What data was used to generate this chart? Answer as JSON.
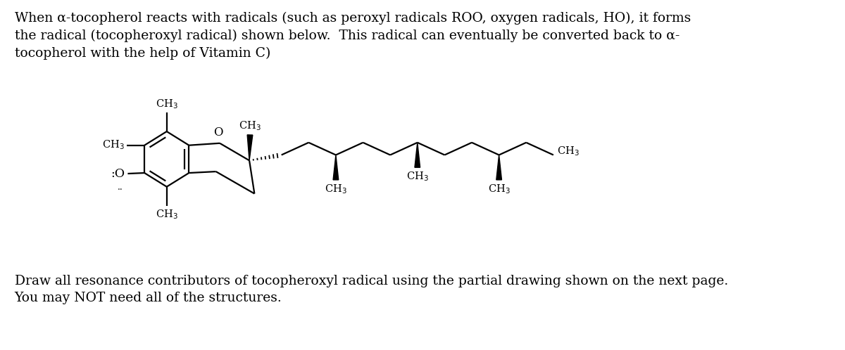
{
  "background_color": "#ffffff",
  "text_top": "When α-tocopherol reacts with radicals (such as peroxyl radicals ROO, oxygen radicals, HO), it forms\nthe radical (tocopheroxyl radical) shown below.  This radical can eventually be converted back to α-\ntocopherol with the help of Vitamin C)",
  "text_bottom": "Draw all resonance contributors of tocopheroxyl radical using the partial drawing shown on the next page.\nYou may NOT need all of the structures.",
  "text_fontsize": 13.5,
  "text_color": "#000000",
  "line_color": "#000000",
  "line_width": 1.6
}
